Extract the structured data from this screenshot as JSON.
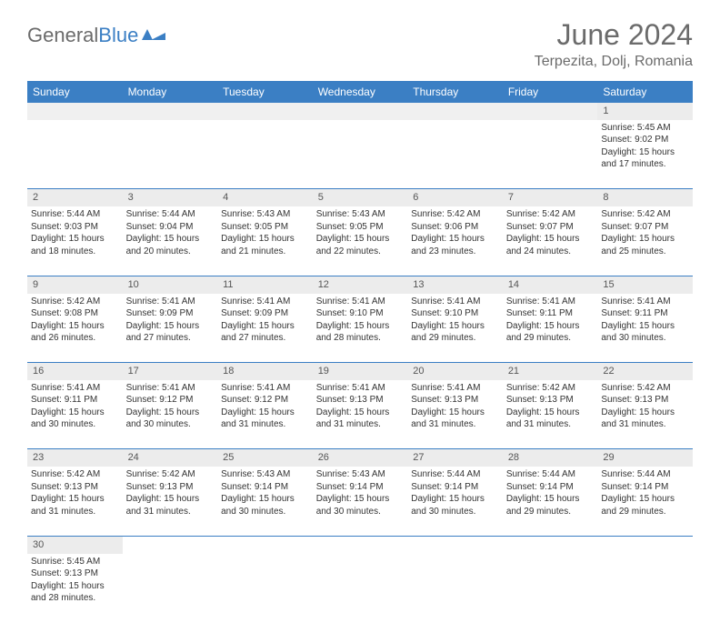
{
  "header": {
    "logo_text_gray": "General",
    "logo_text_blue": "Blue",
    "title": "June 2024",
    "subtitle": "Terpezita, Dolj, Romania"
  },
  "colors": {
    "header_bg": "#3b7fc4",
    "header_text": "#ffffff",
    "daynum_bg": "#ececec",
    "border": "#3b7fc4",
    "logo_gray": "#6b6b6b",
    "logo_blue": "#3b7fc4"
  },
  "weekdays": [
    "Sunday",
    "Monday",
    "Tuesday",
    "Wednesday",
    "Thursday",
    "Friday",
    "Saturday"
  ],
  "weeks": [
    [
      null,
      null,
      null,
      null,
      null,
      null,
      {
        "d": "1",
        "sr": "5:45 AM",
        "ss": "9:02 PM",
        "dl": "15 hours and 17 minutes."
      }
    ],
    [
      {
        "d": "2",
        "sr": "5:44 AM",
        "ss": "9:03 PM",
        "dl": "15 hours and 18 minutes."
      },
      {
        "d": "3",
        "sr": "5:44 AM",
        "ss": "9:04 PM",
        "dl": "15 hours and 20 minutes."
      },
      {
        "d": "4",
        "sr": "5:43 AM",
        "ss": "9:05 PM",
        "dl": "15 hours and 21 minutes."
      },
      {
        "d": "5",
        "sr": "5:43 AM",
        "ss": "9:05 PM",
        "dl": "15 hours and 22 minutes."
      },
      {
        "d": "6",
        "sr": "5:42 AM",
        "ss": "9:06 PM",
        "dl": "15 hours and 23 minutes."
      },
      {
        "d": "7",
        "sr": "5:42 AM",
        "ss": "9:07 PM",
        "dl": "15 hours and 24 minutes."
      },
      {
        "d": "8",
        "sr": "5:42 AM",
        "ss": "9:07 PM",
        "dl": "15 hours and 25 minutes."
      }
    ],
    [
      {
        "d": "9",
        "sr": "5:42 AM",
        "ss": "9:08 PM",
        "dl": "15 hours and 26 minutes."
      },
      {
        "d": "10",
        "sr": "5:41 AM",
        "ss": "9:09 PM",
        "dl": "15 hours and 27 minutes."
      },
      {
        "d": "11",
        "sr": "5:41 AM",
        "ss": "9:09 PM",
        "dl": "15 hours and 27 minutes."
      },
      {
        "d": "12",
        "sr": "5:41 AM",
        "ss": "9:10 PM",
        "dl": "15 hours and 28 minutes."
      },
      {
        "d": "13",
        "sr": "5:41 AM",
        "ss": "9:10 PM",
        "dl": "15 hours and 29 minutes."
      },
      {
        "d": "14",
        "sr": "5:41 AM",
        "ss": "9:11 PM",
        "dl": "15 hours and 29 minutes."
      },
      {
        "d": "15",
        "sr": "5:41 AM",
        "ss": "9:11 PM",
        "dl": "15 hours and 30 minutes."
      }
    ],
    [
      {
        "d": "16",
        "sr": "5:41 AM",
        "ss": "9:11 PM",
        "dl": "15 hours and 30 minutes."
      },
      {
        "d": "17",
        "sr": "5:41 AM",
        "ss": "9:12 PM",
        "dl": "15 hours and 30 minutes."
      },
      {
        "d": "18",
        "sr": "5:41 AM",
        "ss": "9:12 PM",
        "dl": "15 hours and 31 minutes."
      },
      {
        "d": "19",
        "sr": "5:41 AM",
        "ss": "9:13 PM",
        "dl": "15 hours and 31 minutes."
      },
      {
        "d": "20",
        "sr": "5:41 AM",
        "ss": "9:13 PM",
        "dl": "15 hours and 31 minutes."
      },
      {
        "d": "21",
        "sr": "5:42 AM",
        "ss": "9:13 PM",
        "dl": "15 hours and 31 minutes."
      },
      {
        "d": "22",
        "sr": "5:42 AM",
        "ss": "9:13 PM",
        "dl": "15 hours and 31 minutes."
      }
    ],
    [
      {
        "d": "23",
        "sr": "5:42 AM",
        "ss": "9:13 PM",
        "dl": "15 hours and 31 minutes."
      },
      {
        "d": "24",
        "sr": "5:42 AM",
        "ss": "9:13 PM",
        "dl": "15 hours and 31 minutes."
      },
      {
        "d": "25",
        "sr": "5:43 AM",
        "ss": "9:14 PM",
        "dl": "15 hours and 30 minutes."
      },
      {
        "d": "26",
        "sr": "5:43 AM",
        "ss": "9:14 PM",
        "dl": "15 hours and 30 minutes."
      },
      {
        "d": "27",
        "sr": "5:44 AM",
        "ss": "9:14 PM",
        "dl": "15 hours and 30 minutes."
      },
      {
        "d": "28",
        "sr": "5:44 AM",
        "ss": "9:14 PM",
        "dl": "15 hours and 29 minutes."
      },
      {
        "d": "29",
        "sr": "5:44 AM",
        "ss": "9:14 PM",
        "dl": "15 hours and 29 minutes."
      }
    ],
    [
      {
        "d": "30",
        "sr": "5:45 AM",
        "ss": "9:13 PM",
        "dl": "15 hours and 28 minutes."
      },
      null,
      null,
      null,
      null,
      null,
      null
    ]
  ],
  "labels": {
    "sunrise": "Sunrise:",
    "sunset": "Sunset:",
    "daylight": "Daylight:"
  }
}
